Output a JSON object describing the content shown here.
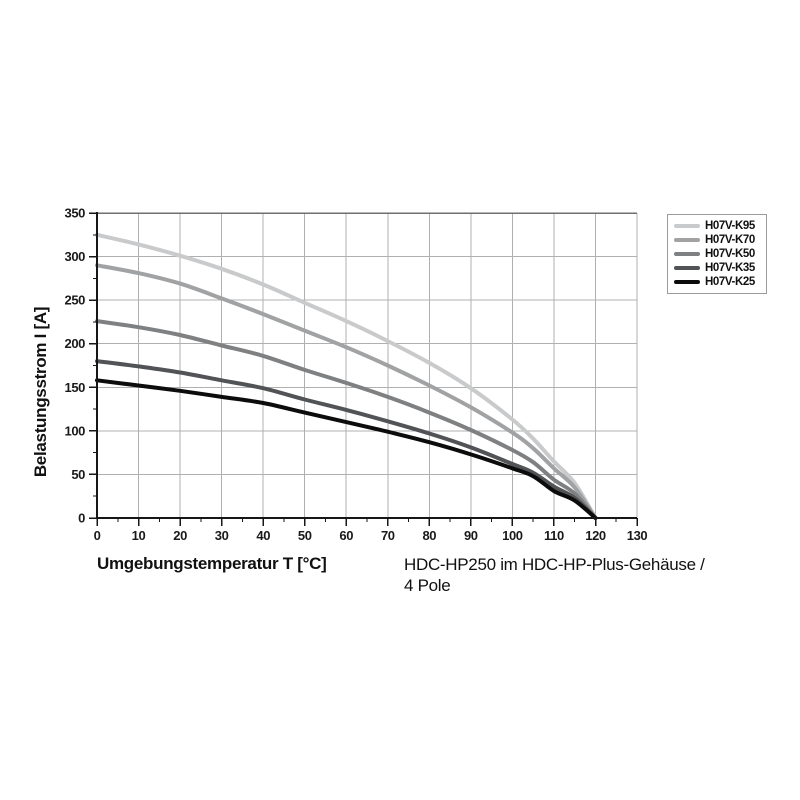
{
  "chart_data": {
    "type": "line",
    "title": "",
    "xlabel": "Umgebungstemperatur T [°C]",
    "ylabel": "Belastungsstrom I [A]",
    "caption_line1": "HDC-HP250 im HDC-HP-Plus-Gehäuse /",
    "caption_line2": "4 Pole",
    "xlim": [
      0,
      130
    ],
    "ylim": [
      0,
      350
    ],
    "x_major_ticks": [
      0,
      10,
      20,
      30,
      40,
      50,
      60,
      70,
      80,
      90,
      100,
      110,
      120,
      130
    ],
    "x_minor_step": 5,
    "y_major_ticks": [
      0,
      50,
      100,
      150,
      200,
      250,
      300,
      350
    ],
    "y_minor_step": 25,
    "grid": {
      "vertical_interval": 10,
      "horizontal_interval": 50,
      "color": "#b0b0b0",
      "top_border_color": "#6f6f6f",
      "axis_color": "#161616"
    },
    "legend_position": "top-right-outside",
    "legend_border_color": "#9b9b9b",
    "x": [
      0,
      10,
      20,
      30,
      40,
      50,
      60,
      70,
      80,
      90,
      100,
      105,
      110,
      115,
      120
    ],
    "series": [
      {
        "name": "H07V-K95",
        "color": "#c9cacb",
        "values": [
          325,
          314,
          301,
          286,
          268,
          247,
          226,
          203,
          178,
          149,
          113,
          91,
          65,
          40,
          0
        ]
      },
      {
        "name": "H07V-K70",
        "color": "#a0a2a4",
        "values": [
          290,
          281,
          269,
          252,
          234,
          215,
          196,
          175,
          152,
          127,
          98,
          80,
          57,
          35,
          0
        ]
      },
      {
        "name": "H07V-K50",
        "color": "#7e8082",
        "values": [
          226,
          219,
          210,
          198,
          186,
          170,
          155,
          139,
          121,
          101,
          78,
          64,
          44,
          28,
          0
        ]
      },
      {
        "name": "H07V-K35",
        "color": "#515356",
        "values": [
          180,
          174,
          167,
          158,
          149,
          136,
          124,
          111,
          97,
          81,
          62,
          52,
          36,
          23,
          0
        ]
      },
      {
        "name": "H07V-K25",
        "color": "#0c0c0d",
        "values": [
          158,
          152,
          146,
          139,
          132,
          121,
          110,
          99,
          87,
          73,
          57,
          48,
          31,
          20,
          0
        ]
      }
    ]
  }
}
